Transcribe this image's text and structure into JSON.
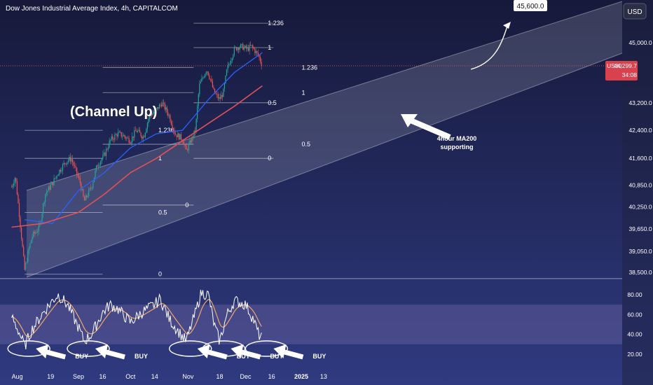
{
  "header": {
    "title": "Dow Jones Industrial Average Index, 4h, CAPITALCOM",
    "currency_button": "USD"
  },
  "price_tag": {
    "symbol": "US30",
    "price": "44,299.7",
    "countdown": "34:08",
    "value": 44299.7
  },
  "target": {
    "label": "45,600.0",
    "value": 45600
  },
  "colors": {
    "bg_top": "#16193a",
    "bg_bottom": "#2f3a80",
    "channel_fill": "#c8cbd8",
    "candle_up": "#26a69a",
    "candle_down": "#ef5350",
    "ma50": "#2962ff",
    "ma200": "#e0515a",
    "rsi": "#ffffff",
    "rsi_ma": "#f0a868",
    "rsi_band": "#7a6fb0"
  },
  "annotations": {
    "channel": "(Channel Up)",
    "ma200_note_line1": "4hour MA200",
    "ma200_note_line2": "supporting",
    "buy": "BUY"
  },
  "chart_data": [
    {
      "type": "candlestick",
      "title": "Dow Jones Industrial Average Index, 4h, CAPITALCOM",
      "x_ticks": [
        "Aug",
        "19",
        "Sep",
        "16",
        "Oct",
        "14",
        "Nov",
        "18",
        "Dec",
        "16",
        "2025",
        "13"
      ],
      "y_ticks": [
        45000,
        44299.7,
        43200,
        42400,
        41600,
        40850,
        40250,
        39650,
        39050,
        38500
      ],
      "y_tick_labels": [
        "45,000.0",
        "44,299.7",
        "43,200.0",
        "42,400.0",
        "41,600.0",
        "40,850.0",
        "40,250.0",
        "39,650.0",
        "39,050.0",
        "38,500.0"
      ],
      "ylim": [
        38400,
        46000
      ],
      "price_path": [
        {
          "date": "2024-07-29",
          "v": 40800
        },
        {
          "date": "2024-07-31",
          "v": 41100
        },
        {
          "date": "2024-08-02",
          "v": 40100
        },
        {
          "date": "2024-08-05",
          "v": 38550
        },
        {
          "date": "2024-08-07",
          "v": 39050
        },
        {
          "date": "2024-08-09",
          "v": 39450
        },
        {
          "date": "2024-08-13",
          "v": 39700
        },
        {
          "date": "2024-08-16",
          "v": 40600
        },
        {
          "date": "2024-08-20",
          "v": 40900
        },
        {
          "date": "2024-08-23",
          "v": 41200
        },
        {
          "date": "2024-08-27",
          "v": 41500
        },
        {
          "date": "2024-08-30",
          "v": 41600
        },
        {
          "date": "2024-09-04",
          "v": 40900
        },
        {
          "date": "2024-09-06",
          "v": 40400
        },
        {
          "date": "2024-09-10",
          "v": 40800
        },
        {
          "date": "2024-09-13",
          "v": 41400
        },
        {
          "date": "2024-09-17",
          "v": 41700
        },
        {
          "date": "2024-09-20",
          "v": 42100
        },
        {
          "date": "2024-09-24",
          "v": 42300
        },
        {
          "date": "2024-09-27",
          "v": 42250
        },
        {
          "date": "2024-10-01",
          "v": 42100
        },
        {
          "date": "2024-10-04",
          "v": 42400
        },
        {
          "date": "2024-10-08",
          "v": 42200
        },
        {
          "date": "2024-10-11",
          "v": 42800
        },
        {
          "date": "2024-10-15",
          "v": 43000
        },
        {
          "date": "2024-10-18",
          "v": 43200
        },
        {
          "date": "2024-10-22",
          "v": 42800
        },
        {
          "date": "2024-10-25",
          "v": 42300
        },
        {
          "date": "2024-10-29",
          "v": 42150
        },
        {
          "date": "2024-10-31",
          "v": 41800
        },
        {
          "date": "2024-11-05",
          "v": 42400
        },
        {
          "date": "2024-11-07",
          "v": 43700
        },
        {
          "date": "2024-11-11",
          "v": 44200
        },
        {
          "date": "2024-11-13",
          "v": 43900
        },
        {
          "date": "2024-11-15",
          "v": 43500
        },
        {
          "date": "2024-11-18",
          "v": 43300
        },
        {
          "date": "2024-11-20",
          "v": 43500
        },
        {
          "date": "2024-11-22",
          "v": 44200
        },
        {
          "date": "2024-11-26",
          "v": 44800
        },
        {
          "date": "2024-11-29",
          "v": 44900
        },
        {
          "date": "2024-12-03",
          "v": 44800
        },
        {
          "date": "2024-12-05",
          "v": 44900
        },
        {
          "date": "2024-12-09",
          "v": 44600
        },
        {
          "date": "2024-12-11",
          "v": 44300
        }
      ],
      "ma50_path": [
        {
          "date": "2024-08-05",
          "v": 39900
        },
        {
          "date": "2024-08-20",
          "v": 39800
        },
        {
          "date": "2024-09-03",
          "v": 40700
        },
        {
          "date": "2024-09-17",
          "v": 41200
        },
        {
          "date": "2024-10-01",
          "v": 41900
        },
        {
          "date": "2024-10-15",
          "v": 42300
        },
        {
          "date": "2024-10-29",
          "v": 42400
        },
        {
          "date": "2024-11-12",
          "v": 43300
        },
        {
          "date": "2024-11-26",
          "v": 44100
        },
        {
          "date": "2024-12-11",
          "v": 44700
        }
      ],
      "ma200_path": [
        {
          "date": "2024-07-29",
          "v": 39700
        },
        {
          "date": "2024-08-15",
          "v": 39800
        },
        {
          "date": "2024-09-03",
          "v": 40100
        },
        {
          "date": "2024-09-17",
          "v": 40600
        },
        {
          "date": "2024-10-01",
          "v": 41200
        },
        {
          "date": "2024-10-15",
          "v": 41600
        },
        {
          "date": "2024-10-29",
          "v": 42100
        },
        {
          "date": "2024-11-12",
          "v": 42600
        },
        {
          "date": "2024-11-26",
          "v": 43100
        },
        {
          "date": "2024-12-11",
          "v": 43700
        }
      ],
      "fib_levels": [
        {
          "labels": [
            "1.236",
            "1",
            "0.5",
            "0"
          ],
          "start": "2024-08-05",
          "end": "2024-09-16",
          "values": [
            42400,
            41600,
            40100,
            38450
          ]
        },
        {
          "labels": [
            "1.236",
            "1",
            "0.5",
            "0"
          ],
          "start": "2024-09-16",
          "end": "2024-11-04",
          "values": [
            44250,
            43500,
            42000,
            40300
          ]
        },
        {
          "labels": [
            "1.236",
            "1",
            "0.5",
            "0"
          ],
          "start": "2024-11-04",
          "end": "2024-12-17",
          "values": [
            45600,
            44850,
            43200,
            41600
          ]
        }
      ],
      "fib_labels_2": [
        "1.236",
        "1",
        "0.5",
        "0"
      ],
      "fib_labels_3": [
        "1.236",
        "1",
        "0.5",
        "0"
      ]
    },
    {
      "type": "line",
      "title": "",
      "y_ticks": [
        80,
        60,
        40,
        20
      ],
      "y_tick_labels": [
        "80.00",
        "60.00",
        "40.00",
        "20.00"
      ],
      "ylim": [
        15,
        86
      ],
      "band": [
        30,
        70
      ],
      "rsi_path": [
        {
          "date": "2024-07-29",
          "v": 58
        },
        {
          "date": "2024-08-02",
          "v": 42
        },
        {
          "date": "2024-08-05",
          "v": 28
        },
        {
          "date": "2024-08-09",
          "v": 45
        },
        {
          "date": "2024-08-15",
          "v": 62
        },
        {
          "date": "2024-08-20",
          "v": 74
        },
        {
          "date": "2024-08-23",
          "v": 80
        },
        {
          "date": "2024-08-28",
          "v": 70
        },
        {
          "date": "2024-09-03",
          "v": 47
        },
        {
          "date": "2024-09-06",
          "v": 33
        },
        {
          "date": "2024-09-10",
          "v": 40
        },
        {
          "date": "2024-09-16",
          "v": 62
        },
        {
          "date": "2024-09-20",
          "v": 70
        },
        {
          "date": "2024-09-24",
          "v": 66
        },
        {
          "date": "2024-10-01",
          "v": 52
        },
        {
          "date": "2024-10-07",
          "v": 62
        },
        {
          "date": "2024-10-14",
          "v": 70
        },
        {
          "date": "2024-10-17",
          "v": 76
        },
        {
          "date": "2024-10-22",
          "v": 55
        },
        {
          "date": "2024-10-28",
          "v": 40
        },
        {
          "date": "2024-10-31",
          "v": 33
        },
        {
          "date": "2024-11-05",
          "v": 62
        },
        {
          "date": "2024-11-08",
          "v": 82
        },
        {
          "date": "2024-11-12",
          "v": 80
        },
        {
          "date": "2024-11-15",
          "v": 50
        },
        {
          "date": "2024-11-18",
          "v": 33
        },
        {
          "date": "2024-11-22",
          "v": 60
        },
        {
          "date": "2024-11-26",
          "v": 74
        },
        {
          "date": "2024-12-02",
          "v": 70
        },
        {
          "date": "2024-12-06",
          "v": 56
        },
        {
          "date": "2024-12-09",
          "v": 40
        },
        {
          "date": "2024-12-11",
          "v": 36
        }
      ],
      "buy_signals": [
        "2024-08-05",
        "2024-09-06",
        "2024-10-31",
        "2024-11-18",
        "2024-12-11"
      ]
    }
  ]
}
